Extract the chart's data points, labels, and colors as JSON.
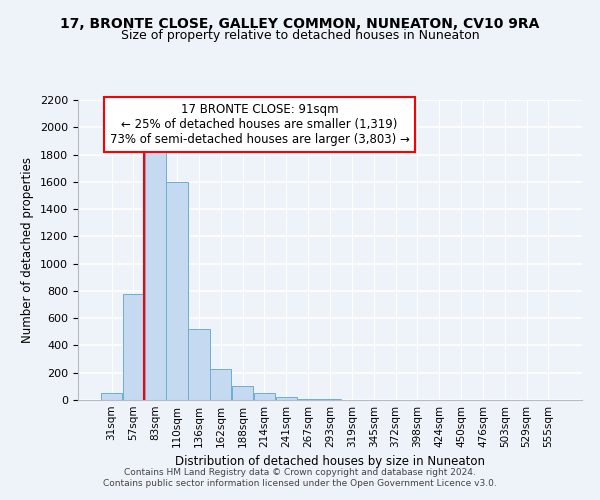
{
  "title": "17, BRONTE CLOSE, GALLEY COMMON, NUNEATON, CV10 9RA",
  "subtitle": "Size of property relative to detached houses in Nuneaton",
  "xlabel": "Distribution of detached houses by size in Nuneaton",
  "ylabel": "Number of detached properties",
  "bar_color": "#c5d9f0",
  "bar_edge_color": "#6baed6",
  "categories": [
    "31sqm",
    "57sqm",
    "83sqm",
    "110sqm",
    "136sqm",
    "162sqm",
    "188sqm",
    "214sqm",
    "241sqm",
    "267sqm",
    "293sqm",
    "319sqm",
    "345sqm",
    "372sqm",
    "398sqm",
    "424sqm",
    "450sqm",
    "476sqm",
    "503sqm",
    "529sqm",
    "555sqm"
  ],
  "values": [
    50,
    775,
    1825,
    1600,
    520,
    230,
    105,
    50,
    25,
    10,
    5,
    0,
    0,
    0,
    0,
    0,
    0,
    0,
    0,
    0,
    0
  ],
  "ylim": [
    0,
    2200
  ],
  "yticks": [
    0,
    200,
    400,
    600,
    800,
    1000,
    1200,
    1400,
    1600,
    1800,
    2000,
    2200
  ],
  "red_line_index": 2,
  "annotation_text": "17 BRONTE CLOSE: 91sqm\n← 25% of detached houses are smaller (1,319)\n73% of semi-detached houses are larger (3,803) →",
  "footer_line1": "Contains HM Land Registry data © Crown copyright and database right 2024.",
  "footer_line2": "Contains public sector information licensed under the Open Government Licence v3.0.",
  "background_color": "#eef2f9",
  "grid_color": "#c8d4e8"
}
